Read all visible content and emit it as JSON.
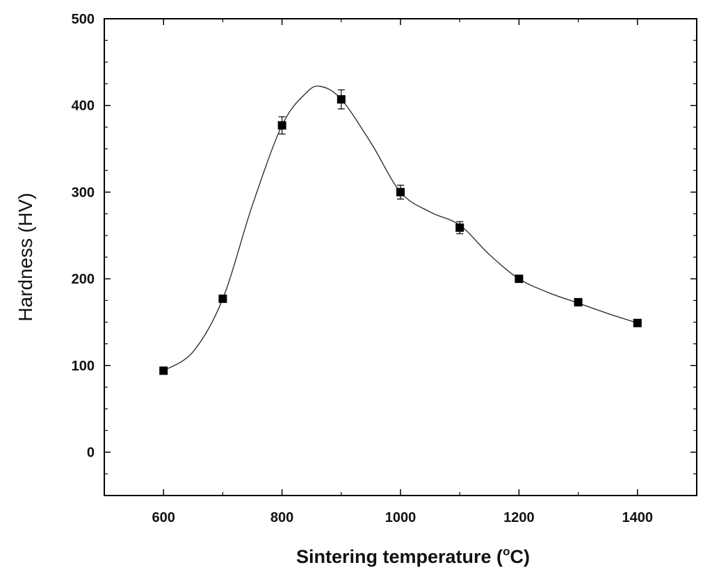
{
  "chart_data": {
    "type": "scatter",
    "title": "",
    "xlabel_main": "Sintering  temperature (",
    "xlabel_super": "o",
    "xlabel_end": "C)",
    "ylabel": "Hardness (HV)",
    "xlim": [
      500,
      1500
    ],
    "ylim": [
      -50,
      500
    ],
    "x_ticks": [
      600,
      800,
      1000,
      1200,
      1400
    ],
    "y_ticks": [
      0,
      100,
      200,
      300,
      400,
      500
    ],
    "series": [
      {
        "name": "Hardness",
        "marker": "square",
        "color": "#000000",
        "x": [
          600,
          700,
          800,
          900,
          1000,
          1100,
          1200,
          1300,
          1400
        ],
        "y": [
          94,
          177,
          377,
          407,
          300,
          259,
          200,
          173,
          149
        ],
        "err": [
          0,
          0,
          10,
          11,
          8,
          7,
          0,
          0,
          0
        ]
      }
    ],
    "fit_curve": {
      "style": "smooth",
      "x": [
        600,
        650,
        700,
        750,
        800,
        840,
        865,
        900,
        950,
        1000,
        1050,
        1100,
        1150,
        1200,
        1250,
        1300,
        1350,
        1400
      ],
      "y": [
        94,
        116,
        177,
        285,
        377,
        414,
        422,
        407,
        357,
        300,
        277,
        262,
        228,
        200,
        184,
        172,
        160,
        149
      ]
    }
  }
}
